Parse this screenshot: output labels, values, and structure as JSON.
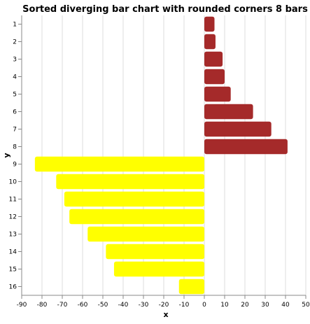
{
  "chart_data": {
    "type": "bar",
    "orientation": "horizontal",
    "title": "Sorted diverging bar chart with rounded corners 8 bars",
    "xlabel": "x",
    "ylabel": "y",
    "xlim": [
      -90,
      50
    ],
    "x_ticks": [
      -90,
      -80,
      -70,
      -60,
      -50,
      -40,
      -30,
      -20,
      -10,
      0,
      10,
      20,
      30,
      40,
      50
    ],
    "grid": true,
    "legend": "none",
    "categories": [
      "1",
      "2",
      "3",
      "4",
      "5",
      "6",
      "7",
      "8",
      "9",
      "10",
      "11",
      "12",
      "13",
      "14",
      "15",
      "16"
    ],
    "values": [
      5,
      5.5,
      9,
      10,
      13,
      24,
      33,
      41,
      -83.5,
      -73,
      -69,
      -66.5,
      -57.5,
      -48.5,
      -44.5,
      -12.5
    ],
    "colors": {
      "positive": "#a52a2a",
      "negative": "#ffff00",
      "grid": "#dddddd",
      "axis": "#888888",
      "text": "#000000"
    }
  }
}
